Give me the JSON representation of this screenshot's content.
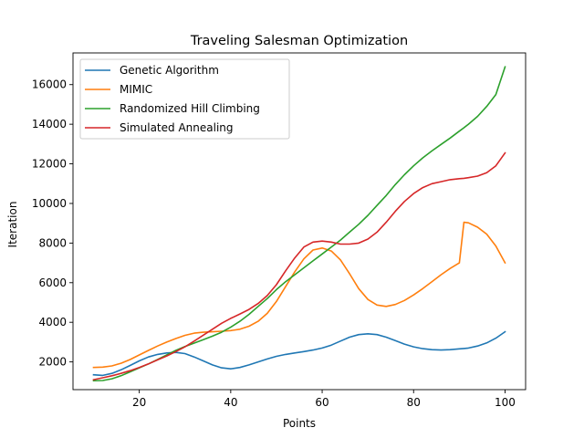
{
  "chart_data": {
    "type": "line",
    "title": "Traveling Salesman Optimization",
    "xlabel": "Points",
    "ylabel": "Iteration",
    "xlim": [
      5.5,
      104.5
    ],
    "ylim": [
      600,
      17600
    ],
    "xticks": [
      20,
      40,
      60,
      80,
      100
    ],
    "yticks": [
      2000,
      4000,
      6000,
      8000,
      10000,
      12000,
      14000,
      16000
    ],
    "grid": false,
    "legend_position": "top-left",
    "x": [
      10,
      12,
      14,
      16,
      18,
      20,
      22,
      24,
      26,
      28,
      30,
      32,
      34,
      36,
      38,
      40,
      42,
      44,
      46,
      48,
      50,
      52,
      54,
      56,
      58,
      60,
      62,
      64,
      66,
      68,
      70,
      72,
      74,
      76,
      78,
      80,
      82,
      84,
      86,
      88,
      90,
      91,
      92,
      94,
      96,
      98,
      100
    ],
    "series": [
      {
        "name": "Genetic Algorithm",
        "color": "#1f77b4",
        "values": [
          1350,
          1320,
          1420,
          1600,
          1820,
          2050,
          2250,
          2380,
          2450,
          2480,
          2420,
          2250,
          2050,
          1850,
          1700,
          1650,
          1720,
          1850,
          2000,
          2150,
          2280,
          2380,
          2450,
          2520,
          2600,
          2700,
          2850,
          3050,
          3250,
          3380,
          3420,
          3380,
          3250,
          3080,
          2900,
          2760,
          2670,
          2620,
          2600,
          2620,
          2660,
          2680,
          2700,
          2800,
          2960,
          3200,
          3520
        ]
      },
      {
        "name": "MIMIC",
        "color": "#ff7f0e",
        "values": [
          1720,
          1740,
          1800,
          1930,
          2120,
          2350,
          2580,
          2800,
          3000,
          3180,
          3340,
          3450,
          3500,
          3520,
          3550,
          3580,
          3650,
          3800,
          4050,
          4450,
          5050,
          5800,
          6550,
          7200,
          7650,
          7750,
          7600,
          7150,
          6450,
          5700,
          5150,
          4870,
          4800,
          4900,
          5100,
          5380,
          5700,
          6050,
          6400,
          6720,
          7000,
          9050,
          9020,
          8800,
          8450,
          7850,
          7000
        ]
      },
      {
        "name": "Randomized Hill Climbing",
        "color": "#2ca02c",
        "values": [
          1050,
          1060,
          1150,
          1300,
          1500,
          1700,
          1900,
          2120,
          2350,
          2580,
          2780,
          2950,
          3120,
          3300,
          3500,
          3750,
          4050,
          4400,
          4800,
          5200,
          5650,
          6050,
          6400,
          6750,
          7100,
          7450,
          7800,
          8150,
          8550,
          8950,
          9400,
          9900,
          10400,
          10950,
          11450,
          11900,
          12300,
          12650,
          12980,
          13300,
          13650,
          13820,
          14000,
          14400,
          14900,
          15500,
          16900
        ]
      },
      {
        "name": "Simulated Annealing",
        "color": "#d62728",
        "values": [
          1100,
          1200,
          1300,
          1420,
          1560,
          1720,
          1900,
          2100,
          2300,
          2520,
          2760,
          3050,
          3350,
          3650,
          3950,
          4200,
          4420,
          4650,
          4950,
          5350,
          5900,
          6600,
          7250,
          7800,
          8050,
          8100,
          8050,
          7950,
          7950,
          8000,
          8200,
          8550,
          9050,
          9600,
          10100,
          10500,
          10800,
          11000,
          11100,
          11200,
          11250,
          11270,
          11300,
          11380,
          11550,
          11900,
          12550
        ]
      }
    ]
  }
}
